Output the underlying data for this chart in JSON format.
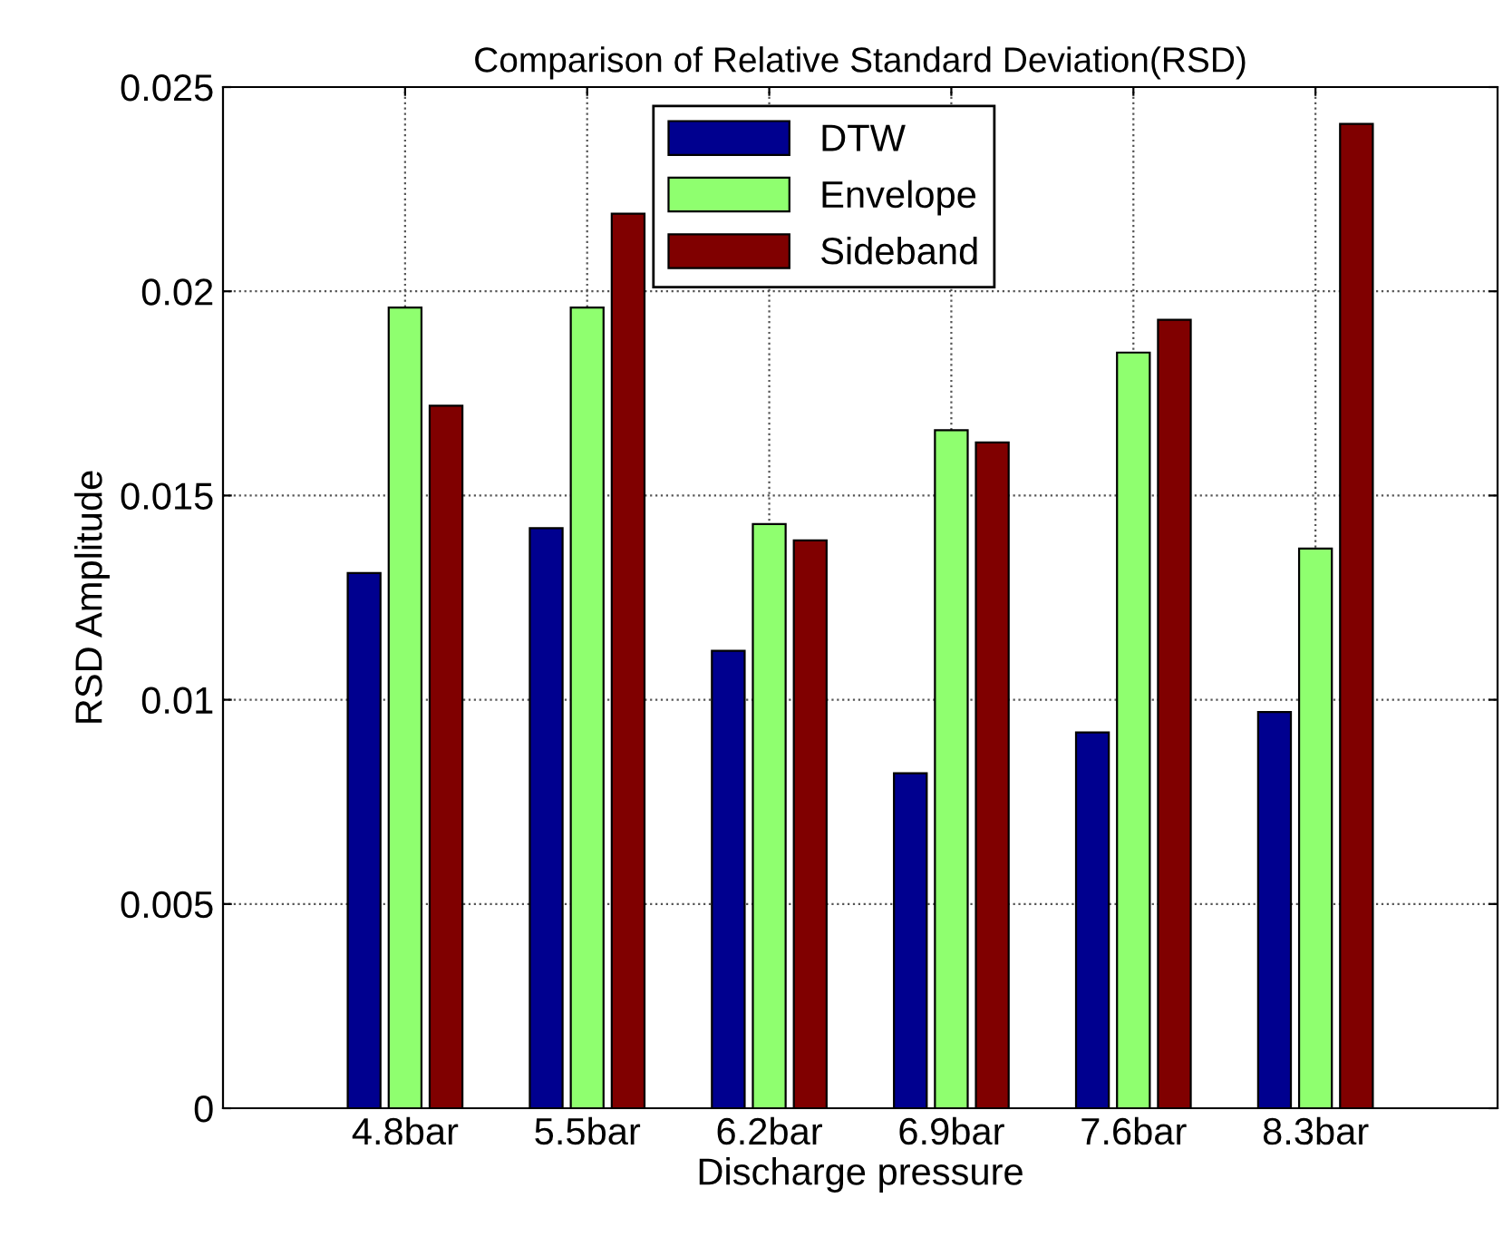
{
  "chart_data": {
    "type": "bar",
    "title": "Comparison of Relative Standard Deviation(RSD)",
    "xlabel": "Discharge pressure",
    "ylabel": "RSD Amplitude",
    "categories": [
      "4.8bar",
      "5.5bar",
      "6.2bar",
      "6.9bar",
      "7.6bar",
      "8.3bar"
    ],
    "series": [
      {
        "name": "DTW",
        "color": "#00008f",
        "values": [
          0.0131,
          0.0142,
          0.0112,
          0.0082,
          0.0092,
          0.0097
        ]
      },
      {
        "name": "Envelope",
        "color": "#8fff6f",
        "values": [
          0.0196,
          0.0196,
          0.0143,
          0.0166,
          0.0185,
          0.0137
        ]
      },
      {
        "name": "Sideband",
        "color": "#800000",
        "values": [
          0.0172,
          0.0219,
          0.0139,
          0.0163,
          0.0193,
          0.0241
        ]
      }
    ],
    "ylim": [
      0,
      0.025
    ],
    "yticks": [
      0,
      0.005,
      0.01,
      0.015,
      0.02,
      0.025
    ],
    "grid": true,
    "legend": "top right"
  }
}
